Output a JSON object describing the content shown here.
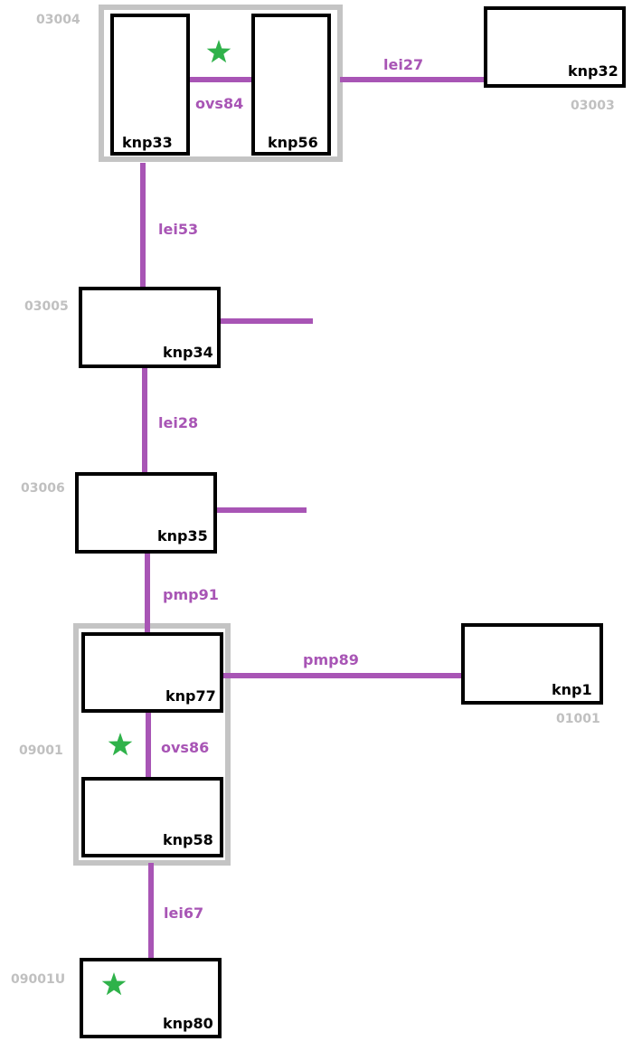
{
  "groups": {
    "g03004": "03004",
    "g09001": "09001"
  },
  "nodes": {
    "knp33": "knp33",
    "knp56": "knp56",
    "knp32": "knp32",
    "knp34": "knp34",
    "knp35": "knp35",
    "knp77": "knp77",
    "knp58": "knp58",
    "knp1": "knp1",
    "knp80": "knp80"
  },
  "location_ids": {
    "knp32": "03003",
    "knp34": "03005",
    "knp35": "03006",
    "knp1": "01001",
    "knp80": "09001U"
  },
  "edges": {
    "ovs84": "ovs84",
    "lei27": "lei27",
    "lei53": "lei53",
    "lei28": "lei28",
    "pmp91": "pmp91",
    "pmp89": "pmp89",
    "ovs86": "ovs86",
    "lei67": "lei67"
  },
  "marker_icon": "star-icon",
  "colors": {
    "edge": "#a855b5",
    "node_border": "#000000",
    "group_border": "#c4c4c4",
    "id_text": "#c0c0c0",
    "star": "#2fb24a"
  }
}
